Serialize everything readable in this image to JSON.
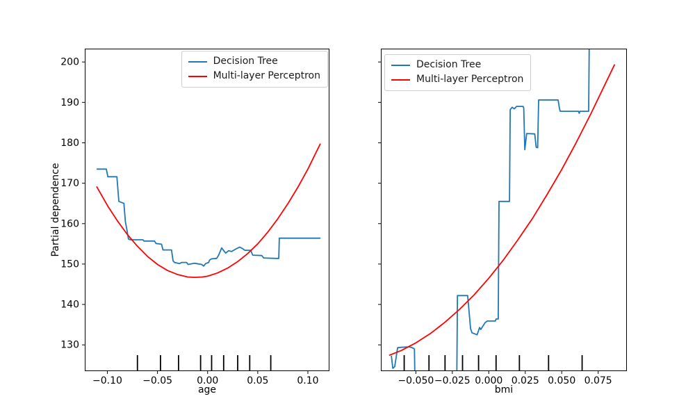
{
  "figure": {
    "ylabel": "Partial dependence",
    "background_color": "#ffffff",
    "spine_color": "#000000"
  },
  "legend": {
    "items": [
      {
        "label": "Decision Tree",
        "color": "#1f77b4"
      },
      {
        "label": "Multi-layer Perceptron",
        "color": "#ff0000"
      }
    ]
  },
  "chart_data": [
    {
      "type": "line",
      "title": "",
      "xlabel": "age",
      "ylabel": "Partial dependence",
      "xlim": [
        -0.1225,
        0.1215
      ],
      "ylim": [
        123.5,
        203.3
      ],
      "grid": false,
      "legend_position": "upper-right",
      "xticks": {
        "values": [
          -0.1,
          -0.05,
          0.0,
          0.05,
          0.1
        ],
        "labels": [
          "−0.10",
          "−0.05",
          "0.00",
          "0.05",
          "0.10"
        ]
      },
      "yticks": {
        "values": [
          130,
          140,
          150,
          160,
          170,
          180,
          190,
          200
        ],
        "labels": [
          "130",
          "140",
          "150",
          "160",
          "170",
          "180",
          "190",
          "200"
        ],
        "show_labels": true
      },
      "deciles": [
        -0.07,
        -0.047,
        -0.029,
        -0.007,
        0.004,
        0.016,
        0.03,
        0.042,
        0.063
      ],
      "series": [
        {
          "name": "Decision Tree",
          "color": "#1f77b4",
          "points": [
            [
              -0.1107,
              173.5
            ],
            [
              -0.101,
              173.5
            ],
            [
              -0.0995,
              171.6
            ],
            [
              -0.0905,
              171.6
            ],
            [
              -0.0885,
              165.5
            ],
            [
              -0.0835,
              165.0
            ],
            [
              -0.082,
              160.5
            ],
            [
              -0.0805,
              158.5
            ],
            [
              -0.079,
              156.2
            ],
            [
              -0.077,
              156.0
            ],
            [
              -0.0645,
              156.0
            ],
            [
              -0.0635,
              155.7
            ],
            [
              -0.053,
              155.7
            ],
            [
              -0.0515,
              155.1
            ],
            [
              -0.046,
              154.9
            ],
            [
              -0.0445,
              153.5
            ],
            [
              -0.036,
              153.5
            ],
            [
              -0.0345,
              150.8
            ],
            [
              -0.033,
              150.4
            ],
            [
              -0.028,
              150.1
            ],
            [
              -0.026,
              150.4
            ],
            [
              -0.021,
              150.4
            ],
            [
              -0.0195,
              149.9
            ],
            [
              -0.013,
              150.2
            ],
            [
              -0.006,
              149.9
            ],
            [
              -0.004,
              149.5
            ],
            [
              -0.002,
              150.1
            ],
            [
              0.001,
              150.4
            ],
            [
              0.002,
              151.0
            ],
            [
              0.004,
              151.3
            ],
            [
              0.009,
              151.4
            ],
            [
              0.011,
              152.2
            ],
            [
              0.014,
              154.0
            ],
            [
              0.018,
              152.7
            ],
            [
              0.021,
              153.3
            ],
            [
              0.024,
              153.1
            ],
            [
              0.028,
              153.7
            ],
            [
              0.032,
              154.2
            ],
            [
              0.035,
              153.8
            ],
            [
              0.037,
              153.4
            ],
            [
              0.043,
              153.4
            ],
            [
              0.045,
              152.2
            ],
            [
              0.054,
              152.1
            ],
            [
              0.056,
              151.5
            ],
            [
              0.068,
              151.4
            ],
            [
              0.071,
              151.4
            ],
            [
              0.0715,
              156.4
            ],
            [
              0.1125,
              156.4
            ]
          ]
        },
        {
          "name": "Multi-layer Perceptron",
          "color": "#ff0000",
          "points": [
            [
              -0.1107,
              169.2
            ],
            [
              -0.1,
              164.5
            ],
            [
              -0.09,
              160.7
            ],
            [
              -0.08,
              157.3
            ],
            [
              -0.07,
              154.4
            ],
            [
              -0.06,
              151.9
            ],
            [
              -0.05,
              149.9
            ],
            [
              -0.04,
              148.4
            ],
            [
              -0.03,
              147.4
            ],
            [
              -0.02,
              146.8
            ],
            [
              -0.013,
              146.7
            ],
            [
              -0.005,
              146.8
            ],
            [
              0.0,
              147.0
            ],
            [
              0.01,
              147.8
            ],
            [
              0.02,
              149.0
            ],
            [
              0.03,
              150.6
            ],
            [
              0.04,
              152.6
            ],
            [
              0.05,
              155.0
            ],
            [
              0.06,
              157.9
            ],
            [
              0.07,
              161.2
            ],
            [
              0.08,
              164.9
            ],
            [
              0.09,
              169.0
            ],
            [
              0.1,
              173.5
            ],
            [
              0.1125,
              179.8
            ]
          ]
        }
      ]
    },
    {
      "type": "line",
      "title": "",
      "xlabel": "bmi",
      "ylabel": "Partial dependence",
      "xlim": [
        -0.074,
        0.0947
      ],
      "ylim": [
        123.5,
        203.3
      ],
      "grid": false,
      "legend_position": "upper-left",
      "xticks": {
        "values": [
          -0.05,
          -0.025,
          0.0,
          0.025,
          0.05,
          0.075
        ],
        "labels": [
          "−0.050",
          "−0.025",
          "0.000",
          "0.025",
          "0.050",
          "0.075"
        ]
      },
      "yticks": {
        "values": [
          130,
          140,
          150,
          160,
          170,
          180,
          190,
          200
        ],
        "labels": [
          "130",
          "140",
          "150",
          "160",
          "170",
          "180",
          "190",
          "200"
        ],
        "show_labels": false
      },
      "deciles": [
        -0.058,
        -0.041,
        -0.03,
        -0.018,
        -0.007,
        0.005,
        0.021,
        0.041,
        0.064
      ],
      "series": [
        {
          "name": "Decision Tree",
          "color": "#1f77b4",
          "points": [
            [
              -0.0668,
              127.3
            ],
            [
              -0.0658,
              124.2
            ],
            [
              -0.0645,
              124.6
            ],
            [
              -0.0625,
              129.3
            ],
            [
              -0.06,
              129.4
            ],
            [
              -0.0545,
              129.5
            ],
            [
              -0.0525,
              129.3
            ],
            [
              -0.051,
              129.0
            ],
            [
              -0.0505,
              118.0
            ],
            [
              -0.022,
              118.0
            ],
            [
              -0.0215,
              142.2
            ],
            [
              -0.0145,
              142.2
            ],
            [
              -0.0125,
              134.0
            ],
            [
              -0.0115,
              133.0
            ],
            [
              -0.008,
              132.5
            ],
            [
              -0.0063,
              134.3
            ],
            [
              -0.0055,
              133.8
            ],
            [
              -0.0025,
              135.5
            ],
            [
              -0.001,
              135.9
            ],
            [
              0.0045,
              135.9
            ],
            [
              0.005,
              136.4
            ],
            [
              0.0065,
              136.4
            ],
            [
              0.007,
              165.5
            ],
            [
              0.0142,
              165.5
            ],
            [
              0.0147,
              188.2
            ],
            [
              0.016,
              188.8
            ],
            [
              0.0175,
              188.4
            ],
            [
              0.019,
              189.0
            ],
            [
              0.0235,
              189.0
            ],
            [
              0.024,
              188.6
            ],
            [
              0.0247,
              178.3
            ],
            [
              0.026,
              182.3
            ],
            [
              0.0315,
              182.2
            ],
            [
              0.0325,
              178.9
            ],
            [
              0.0335,
              178.8
            ],
            [
              0.0342,
              190.6
            ],
            [
              0.0475,
              190.6
            ],
            [
              0.0485,
              188.4
            ],
            [
              0.049,
              187.8
            ],
            [
              0.0615,
              187.8
            ],
            [
              0.062,
              187.3
            ],
            [
              0.0625,
              187.8
            ],
            [
              0.0685,
              187.8
            ],
            [
              0.069,
              210.0
            ]
          ]
        },
        {
          "name": "Multi-layer Perceptron",
          "color": "#ff0000",
          "points": [
            [
              -0.0684,
              127.4
            ],
            [
              -0.06,
              128.6
            ],
            [
              -0.05,
              130.5
            ],
            [
              -0.04,
              132.8
            ],
            [
              -0.03,
              135.6
            ],
            [
              -0.02,
              138.8
            ],
            [
              -0.01,
              142.4
            ],
            [
              0.0,
              146.5
            ],
            [
              0.01,
              151.0
            ],
            [
              0.02,
              156.0
            ],
            [
              0.03,
              161.3
            ],
            [
              0.04,
              167.2
            ],
            [
              0.05,
              173.4
            ],
            [
              0.06,
              180.1
            ],
            [
              0.07,
              187.2
            ],
            [
              0.08,
              194.7
            ],
            [
              0.0863,
              199.4
            ]
          ]
        }
      ]
    }
  ]
}
